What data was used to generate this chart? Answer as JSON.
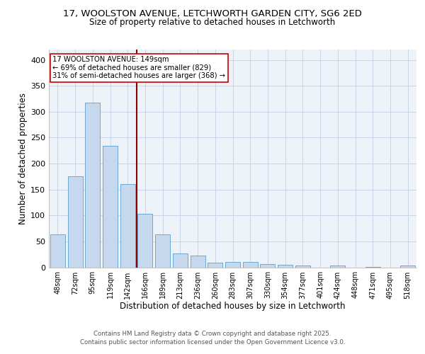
{
  "title1": "17, WOOLSTON AVENUE, LETCHWORTH GARDEN CITY, SG6 2ED",
  "title2": "Size of property relative to detached houses in Letchworth",
  "xlabel": "Distribution of detached houses by size in Letchworth",
  "ylabel": "Number of detached properties",
  "categories": [
    "48sqm",
    "72sqm",
    "95sqm",
    "119sqm",
    "142sqm",
    "166sqm",
    "189sqm",
    "213sqm",
    "236sqm",
    "260sqm",
    "283sqm",
    "307sqm",
    "330sqm",
    "354sqm",
    "377sqm",
    "401sqm",
    "424sqm",
    "448sqm",
    "471sqm",
    "495sqm",
    "518sqm"
  ],
  "values": [
    63,
    175,
    317,
    234,
    160,
    103,
    63,
    27,
    22,
    9,
    10,
    10,
    6,
    5,
    4,
    0,
    4,
    0,
    1,
    0,
    3
  ],
  "bar_color": "#c5d8ed",
  "bar_edge_color": "#6baad4",
  "grid_color": "#c8d4e8",
  "background_color": "#edf2f9",
  "vline_x": 4.5,
  "vline_color": "#8b0000",
  "annotation_text": "17 WOOLSTON AVENUE: 149sqm\n← 69% of detached houses are smaller (829)\n31% of semi-detached houses are larger (368) →",
  "annotation_box_color": "#ffffff",
  "annotation_box_edge": "#cc0000",
  "footer_text": "Contains HM Land Registry data © Crown copyright and database right 2025.\nContains public sector information licensed under the Open Government Licence v3.0.",
  "ylim": [
    0,
    420
  ],
  "yticks": [
    0,
    50,
    100,
    150,
    200,
    250,
    300,
    350,
    400
  ],
  "figsize": [
    6.0,
    5.0
  ],
  "dpi": 100
}
